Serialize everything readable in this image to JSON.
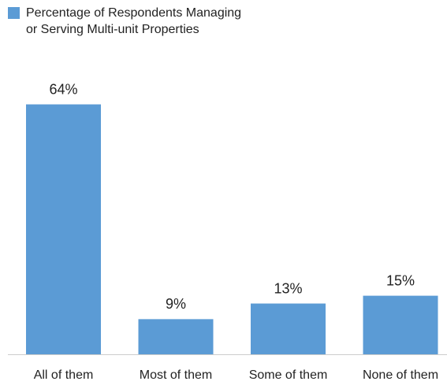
{
  "chart_data": {
    "type": "bar",
    "series": [
      {
        "name": "Percentage of Respondents Managing or Serving Multi-unit Properties",
        "color": "#5b9bd5",
        "values": [
          64,
          9,
          13,
          15
        ],
        "value_labels": [
          "64%",
          "9%",
          "13%",
          "15%"
        ]
      }
    ],
    "categories": [
      "All of them",
      "Most of them",
      "Some of them",
      "None of them"
    ]
  }
}
